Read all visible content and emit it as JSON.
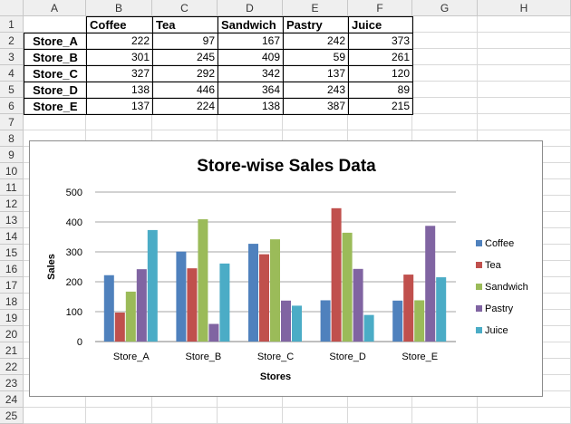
{
  "sheet": {
    "columns": [
      "A",
      "B",
      "C",
      "D",
      "E",
      "F",
      "G",
      "H"
    ],
    "rows": [
      "1",
      "2",
      "3",
      "4",
      "5",
      "6",
      "7",
      "8",
      "9",
      "10",
      "11",
      "12",
      "13",
      "14",
      "15",
      "16",
      "17",
      "18",
      "19",
      "20",
      "21",
      "22",
      "23",
      "24",
      "25"
    ],
    "header_row": [
      "",
      "Coffee",
      "Tea",
      "Sandwich",
      "Pastry",
      "Juice"
    ],
    "data_rows": [
      {
        "store": "Store_A",
        "values": [
          "222",
          "97",
          "167",
          "242",
          "373"
        ]
      },
      {
        "store": "Store_B",
        "values": [
          "301",
          "245",
          "409",
          "59",
          "261"
        ]
      },
      {
        "store": "Store_C",
        "values": [
          "327",
          "292",
          "342",
          "137",
          "120"
        ]
      },
      {
        "store": "Store_D",
        "values": [
          "138",
          "446",
          "364",
          "243",
          "89"
        ]
      },
      {
        "store": "Store_E",
        "values": [
          "137",
          "224",
          "138",
          "387",
          "215"
        ]
      }
    ]
  },
  "chart_data": {
    "type": "bar",
    "title": "Store-wise Sales Data",
    "xlabel": "Stores",
    "ylabel": "Sales",
    "ylim": [
      0,
      500
    ],
    "yticks": [
      "0",
      "100",
      "200",
      "300",
      "400",
      "500"
    ],
    "categories": [
      "Store_A",
      "Store_B",
      "Store_C",
      "Store_D",
      "Store_E"
    ],
    "series": [
      {
        "name": "Coffee",
        "color": "#4f81bd",
        "values": [
          222,
          301,
          327,
          138,
          137
        ]
      },
      {
        "name": "Tea",
        "color": "#c0504d",
        "values": [
          97,
          245,
          292,
          446,
          224
        ]
      },
      {
        "name": "Sandwich",
        "color": "#9bbb59",
        "values": [
          167,
          409,
          342,
          364,
          138
        ]
      },
      {
        "name": "Pastry",
        "color": "#8064a2",
        "values": [
          242,
          59,
          137,
          243,
          387
        ]
      },
      {
        "name": "Juice",
        "color": "#4bacc6",
        "values": [
          373,
          261,
          120,
          89,
          215
        ]
      }
    ],
    "legend_position": "right",
    "grid": true
  }
}
